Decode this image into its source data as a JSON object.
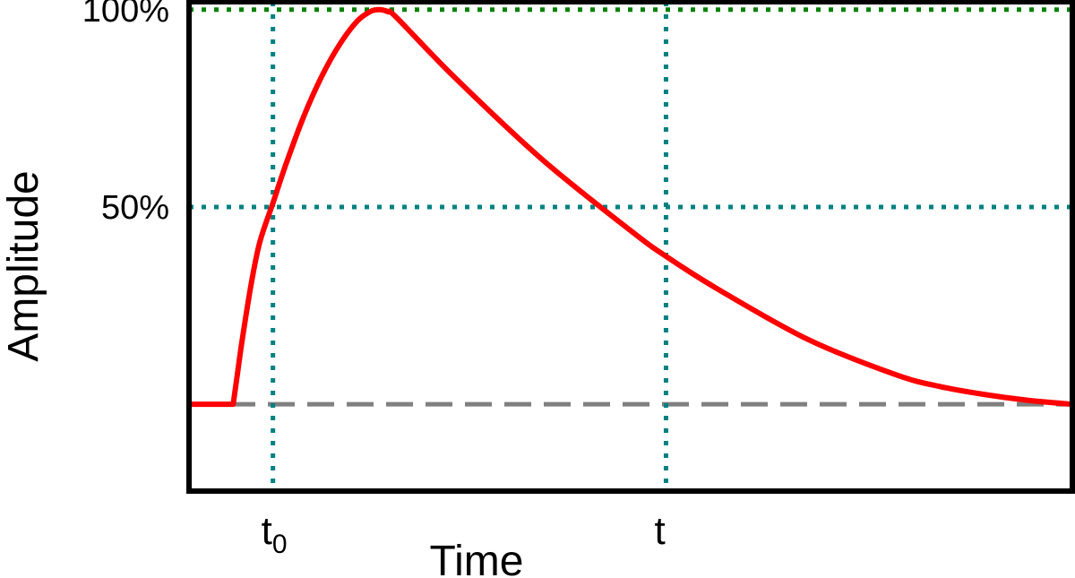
{
  "chart_data": {
    "type": "line",
    "title": "",
    "xlabel": "Time",
    "ylabel": "Amplitude",
    "ylim": [
      -22,
      102
    ],
    "xlim": [
      0,
      100
    ],
    "grid": false,
    "y_ticks": [
      {
        "value": 50,
        "label": "50%"
      },
      {
        "value": 100,
        "label": "100%"
      }
    ],
    "time_markers": [
      {
        "x": 9.5,
        "base": "t",
        "sub": "0"
      },
      {
        "x": 54,
        "base": "t",
        "sub": ""
      }
    ],
    "baseline": {
      "y": 0
    },
    "series": [
      {
        "x": [
          0,
          5,
          5.5,
          6,
          7,
          8,
          9.5,
          11,
          13,
          15,
          17,
          19,
          20.5,
          21.5,
          22.5,
          23.5,
          30,
          40,
          50,
          54,
          60,
          70,
          80,
          85,
          90,
          95,
          100
        ],
        "y": [
          0,
          0,
          8,
          16,
          30,
          41,
          51,
          61,
          73,
          83,
          91,
          97,
          99.5,
          100,
          99.5,
          98,
          83,
          62,
          44,
          37.5,
          29,
          16.5,
          7.5,
          4.5,
          2.5,
          1,
          0
        ]
      }
    ],
    "colors": {
      "curve": "#ff0000",
      "ref_100": "#008000",
      "ref_markers": "#008080",
      "baseline": "#808080",
      "frame": "#000000"
    }
  }
}
